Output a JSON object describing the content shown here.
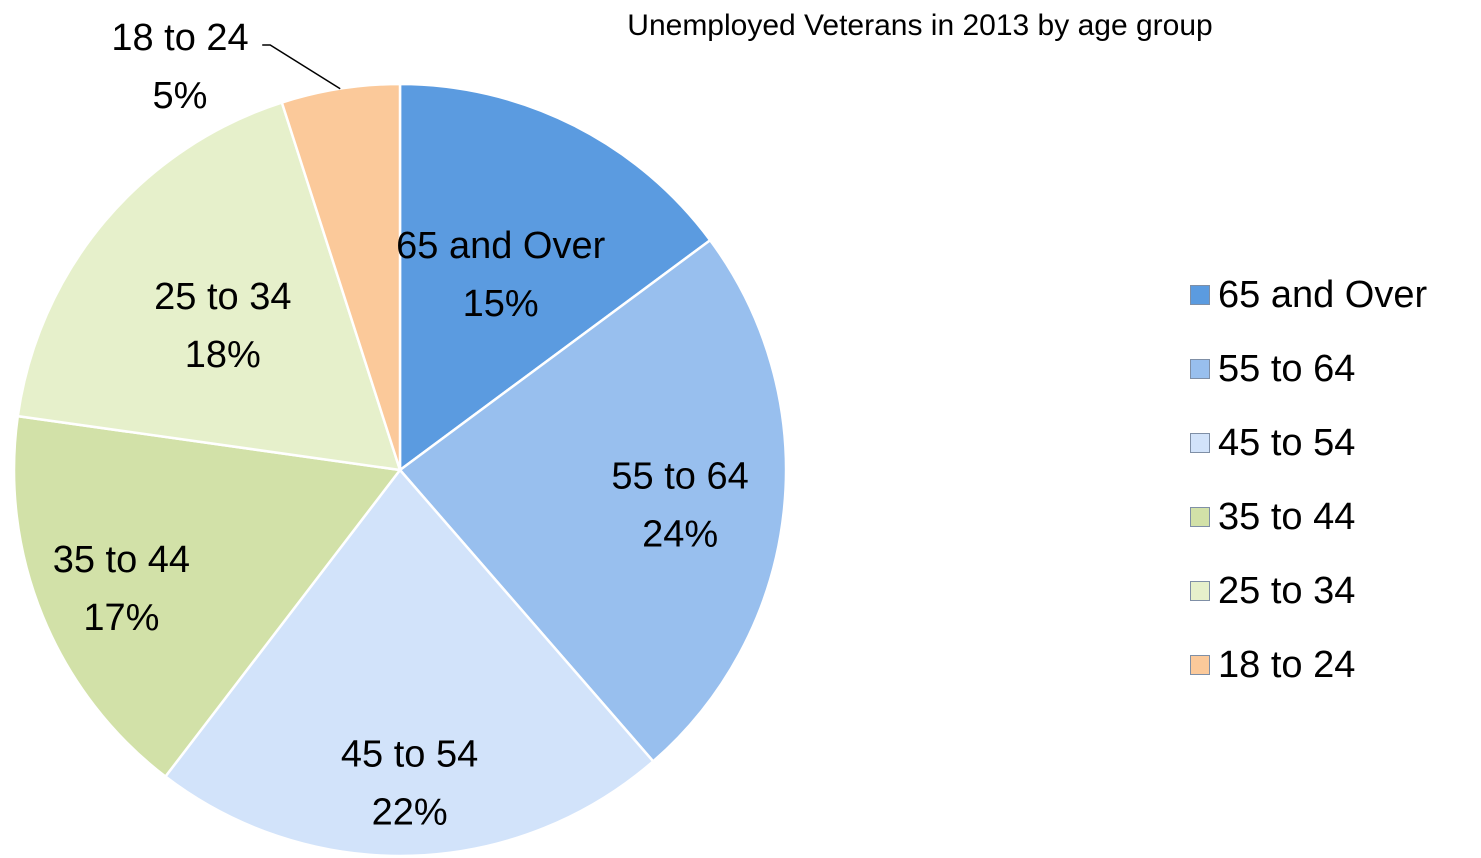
{
  "chart_data": {
    "type": "pie",
    "title": "Unemployed Veterans in 2013 by age group",
    "slices": [
      {
        "label": "65 and Over",
        "value": 15,
        "value_label": "15%",
        "color": "#5b9be0"
      },
      {
        "label": "55 to 64",
        "value": 24,
        "value_label": "24%",
        "color": "#98bfee"
      },
      {
        "label": "45 to 54",
        "value": 22,
        "value_label": "22%",
        "color": "#d2e3fa"
      },
      {
        "label": "35 to 44",
        "value": 17,
        "value_label": "17%",
        "color": "#d2e1a8"
      },
      {
        "label": "25 to 34",
        "value": 18,
        "value_label": "18%",
        "color": "#e6f0cb"
      },
      {
        "label": "18 to 24",
        "value": 5,
        "value_label": "5%",
        "color": "#fbc99a"
      }
    ],
    "legend": {
      "position": "right",
      "items": [
        "65 and Over",
        "55 to 64",
        "45 to 54",
        "35 to 44",
        "25 to 34",
        "18 to 24"
      ]
    }
  }
}
